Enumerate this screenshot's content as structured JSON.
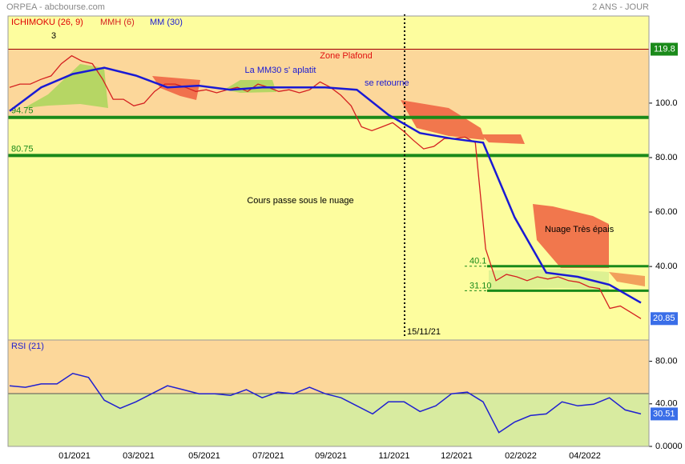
{
  "chart_data": [
    {
      "type": "line",
      "title": "ORPEA - abcbourse.com",
      "subtitle": "2 ANS - JOUR",
      "cloud_label": "ICHIMOKU (26, 9)",
      "series": [
        {
          "name": "MMH (6)",
          "color": "#d42020",
          "values": [
            105.8,
            107,
            107,
            108.7,
            110,
            114.5,
            117.4,
            115.4,
            114.5,
            108.7,
            101.4,
            101.4,
            99,
            100,
            104.3,
            107,
            107,
            105.8,
            104.3,
            104.9,
            103.8,
            104.9,
            105.8,
            104.3,
            107,
            105.8,
            104.3,
            104.9,
            103.8,
            104.9,
            107.8,
            105.8,
            102.9,
            99,
            91.3,
            89.9,
            91.3,
            92.8,
            89.9,
            86.4,
            83.2,
            84.1,
            87,
            87,
            87.5,
            85.5,
            46.4,
            34.8,
            37.1,
            36.2,
            34.8,
            36.2,
            35.4,
            36.2,
            34.8,
            34.2,
            32.5,
            31.9,
            24.6,
            25.5,
            23.2,
            20.85
          ]
        },
        {
          "name": "MM (30)",
          "color": "#1a1ad4",
          "values": [
            97.1,
            105.8,
            110.7,
            113,
            110.1,
            105.8,
            106.4,
            104.9,
            105.8,
            105.8,
            105.8,
            104.9,
            95.7,
            89,
            87,
            85.5,
            58,
            37.7,
            36.2,
            33.3,
            26.7
          ]
        }
      ],
      "ylim": [
        13,
        132
      ],
      "yticks": [
        {
          "value": 100,
          "label": "100.0"
        },
        {
          "value": 80,
          "label": "80.00"
        },
        {
          "value": 60,
          "label": "60.00"
        },
        {
          "value": 40,
          "label": "40.00"
        }
      ],
      "levels": [
        {
          "value": 119.8,
          "color": "#a00000"
        },
        {
          "value": 94.75,
          "label": "94.75",
          "color": "#1a8a1a"
        },
        {
          "value": 80.75,
          "label": "80.75",
          "color": "#1a8a1a"
        },
        {
          "value": 40.1,
          "label": "40.1",
          "color": "#1a8a1a"
        },
        {
          "value": 31.1,
          "label": "31.10",
          "color": "#1a8a1a"
        }
      ],
      "marker_date": "15/11/21",
      "annotations": [
        {
          "text": "3",
          "color": "#000000"
        },
        {
          "text": "Zone Plafond",
          "color": "#e01010"
        },
        {
          "text": "La MM30 s' aplatit",
          "color": "#1a1ad4"
        },
        {
          "text": "se retourne",
          "color": "#1a1ad4"
        },
        {
          "text": "Cours passe sous le nuage",
          "color": "#000000"
        },
        {
          "text": "Nuage Très épais",
          "color": "#000000"
        }
      ]
    },
    {
      "type": "line",
      "series": [
        {
          "name": "RSI (21)",
          "color": "#2020d0",
          "values": [
            57,
            55.6,
            58.7,
            58.7,
            68.6,
            64.8,
            43.4,
            35.8,
            41.9,
            49.5,
            57,
            53.3,
            49.5,
            49.5,
            48,
            53.3,
            45.7,
            51,
            49.5,
            55.6,
            49.5,
            45.7,
            38.1,
            30.5,
            41.9,
            41.9,
            32.8,
            38.1,
            49.5,
            51,
            41.9,
            13,
            22.9,
            29,
            30.5,
            41.9,
            38.1,
            39.6,
            45.7,
            34.3,
            30.51
          ]
        }
      ],
      "ylim": [
        0,
        100
      ],
      "yticks": [
        {
          "value": 80,
          "label": "80.00"
        },
        {
          "value": 40,
          "label": "40.00"
        },
        {
          "value": 0,
          "label": "0.0000"
        }
      ],
      "x_labels": [
        "01/2021",
        "03/2021",
        "05/2021",
        "07/2021",
        "09/2021",
        "11/2021",
        "12/2021",
        "02/2022",
        "04/2022"
      ]
    }
  ]
}
